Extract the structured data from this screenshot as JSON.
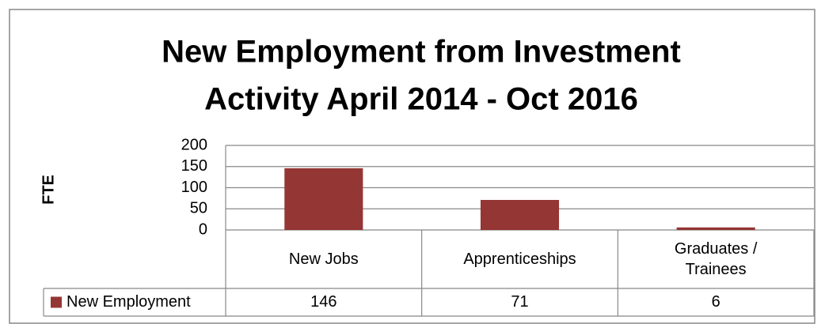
{
  "chart_data": {
    "type": "bar",
    "title": [
      "New Employment from Investment",
      "Activity April 2014 - Oct 2016"
    ],
    "y_label": "FTE",
    "categories": [
      "New Jobs",
      "Apprenticeships",
      "Graduates / Trainees"
    ],
    "series": [
      {
        "name": "New Employment",
        "color": "#943634",
        "values": [
          146,
          71,
          6
        ]
      }
    ],
    "ylim": [
      0,
      200
    ],
    "yticks": [
      0,
      50,
      100,
      150,
      200
    ],
    "grid": true,
    "data_table": true
  }
}
